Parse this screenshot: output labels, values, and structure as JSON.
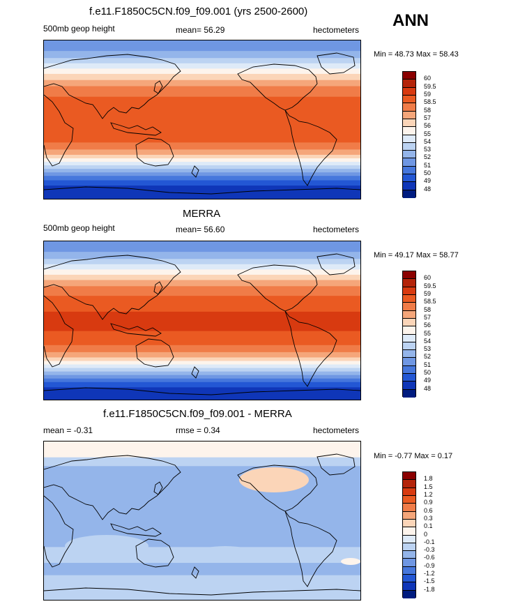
{
  "header": {
    "season": "ANN"
  },
  "chart_data": [
    {
      "type": "heatmap",
      "title": "f.e11.F1850C5CN.f09_f09.001 (yrs 2500-2600)",
      "left_label": "500mb geop height",
      "mean_label": "mean=  56.29",
      "units": "hectometers",
      "minmax_label": "Min =  48.73 Max =  58.43",
      "field": "500mb geopotential height",
      "mean": 56.29,
      "min": 48.73,
      "max": 58.43,
      "colorbar_levels": [
        "60",
        "59.5",
        "59",
        "58.5",
        "58",
        "57",
        "56",
        "55",
        "54",
        "53",
        "52",
        "51",
        "50",
        "49",
        "48"
      ],
      "colorbar_colors": [
        "#8b0000",
        "#b4240a",
        "#d83a10",
        "#ea5a22",
        "#f07c48",
        "#f5a67a",
        "#fbd5b8",
        "#fdf4ec",
        "#deeaf8",
        "#bcd3f2",
        "#94b5ea",
        "#6f97e3",
        "#4677dc",
        "#2357d4",
        "#0f36b8",
        "#001c80"
      ],
      "bands": [
        {
          "from": 90,
          "to": 78,
          "color": "#6f97e3"
        },
        {
          "from": 78,
          "to": 70,
          "color": "#94b5ea"
        },
        {
          "from": 70,
          "to": 64,
          "color": "#bcd3f2"
        },
        {
          "from": 64,
          "to": 58,
          "color": "#deeaf8"
        },
        {
          "from": 58,
          "to": 52,
          "color": "#fdf4ec"
        },
        {
          "from": 52,
          "to": 45,
          "color": "#fbd5b8"
        },
        {
          "from": 45,
          "to": 38,
          "color": "#f5a67a"
        },
        {
          "from": 38,
          "to": 26,
          "color": "#f07c48"
        },
        {
          "from": 26,
          "to": -26,
          "color": "#ea5a22"
        },
        {
          "from": -26,
          "to": -34,
          "color": "#f07c48"
        },
        {
          "from": -34,
          "to": -40,
          "color": "#f5a67a"
        },
        {
          "from": -40,
          "to": -44,
          "color": "#fbd5b8"
        },
        {
          "from": -44,
          "to": -48,
          "color": "#fdf4ec"
        },
        {
          "from": -48,
          "to": -52,
          "color": "#deeaf8"
        },
        {
          "from": -52,
          "to": -56,
          "color": "#bcd3f2"
        },
        {
          "from": -56,
          "to": -60,
          "color": "#94b5ea"
        },
        {
          "from": -60,
          "to": -64,
          "color": "#6f97e3"
        },
        {
          "from": -64,
          "to": -69,
          "color": "#4677dc"
        },
        {
          "from": -69,
          "to": -75,
          "color": "#2357d4"
        },
        {
          "from": -75,
          "to": -90,
          "color": "#0f36b8"
        }
      ]
    },
    {
      "type": "heatmap",
      "title": "MERRA",
      "left_label": "500mb geop height",
      "mean_label": "mean=  56.60",
      "units": "hectometers",
      "minmax_label": "Min =  49.17 Max =  58.77",
      "field": "500mb geopotential height",
      "mean": 56.6,
      "min": 49.17,
      "max": 58.77,
      "colorbar_levels": [
        "60",
        "59.5",
        "59",
        "58.5",
        "58",
        "57",
        "56",
        "55",
        "54",
        "53",
        "52",
        "51",
        "50",
        "49",
        "48"
      ],
      "colorbar_colors": [
        "#8b0000",
        "#b4240a",
        "#d83a10",
        "#ea5a22",
        "#f07c48",
        "#f5a67a",
        "#fbd5b8",
        "#fdf4ec",
        "#deeaf8",
        "#bcd3f2",
        "#94b5ea",
        "#6f97e3",
        "#4677dc",
        "#2357d4",
        "#0f36b8",
        "#001c80"
      ],
      "bands": [
        {
          "from": 90,
          "to": 78,
          "color": "#6f97e3"
        },
        {
          "from": 78,
          "to": 70,
          "color": "#94b5ea"
        },
        {
          "from": 70,
          "to": 64,
          "color": "#bcd3f2"
        },
        {
          "from": 64,
          "to": 58,
          "color": "#deeaf8"
        },
        {
          "from": 58,
          "to": 52,
          "color": "#fdf4ec"
        },
        {
          "from": 52,
          "to": 46,
          "color": "#fbd5b8"
        },
        {
          "from": 46,
          "to": 39,
          "color": "#f5a67a"
        },
        {
          "from": 39,
          "to": 28,
          "color": "#f07c48"
        },
        {
          "from": 28,
          "to": 10,
          "color": "#ea5a22"
        },
        {
          "from": 10,
          "to": -12,
          "color": "#d83a10"
        },
        {
          "from": -12,
          "to": -28,
          "color": "#ea5a22"
        },
        {
          "from": -28,
          "to": -36,
          "color": "#f07c48"
        },
        {
          "from": -36,
          "to": -42,
          "color": "#f5a67a"
        },
        {
          "from": -42,
          "to": -46,
          "color": "#fbd5b8"
        },
        {
          "from": -46,
          "to": -50,
          "color": "#fdf4ec"
        },
        {
          "from": -50,
          "to": -54,
          "color": "#deeaf8"
        },
        {
          "from": -54,
          "to": -58,
          "color": "#bcd3f2"
        },
        {
          "from": -58,
          "to": -62,
          "color": "#94b5ea"
        },
        {
          "from": -62,
          "to": -66,
          "color": "#6f97e3"
        },
        {
          "from": -66,
          "to": -70,
          "color": "#4677dc"
        },
        {
          "from": -70,
          "to": -76,
          "color": "#2357d4"
        },
        {
          "from": -76,
          "to": -90,
          "color": "#0f36b8"
        }
      ]
    },
    {
      "type": "heatmap",
      "title": "f.e11.F1850C5CN.f09_f09.001 - MERRA",
      "left_label": "mean =  -0.31",
      "mean_label": "rmse =  0.34",
      "units": "hectometers",
      "minmax_label": "Min =  -0.77 Max =  0.17",
      "field": "500mb geopotential height difference",
      "mean": -0.31,
      "rmse": 0.34,
      "min": -0.77,
      "max": 0.17,
      "colorbar_levels": [
        "1.8",
        "1.5",
        "1.2",
        "0.9",
        "0.6",
        "0.3",
        "0.1",
        "0",
        "-0.1",
        "-0.3",
        "-0.6",
        "-0.9",
        "-1.2",
        "-1.5",
        "-1.8"
      ],
      "colorbar_colors": [
        "#8b0000",
        "#b4240a",
        "#d83a10",
        "#ea5a22",
        "#f07c48",
        "#f5a67a",
        "#fbd5b8",
        "#fdf4ec",
        "#deeaf8",
        "#bcd3f2",
        "#94b5ea",
        "#6f97e3",
        "#4677dc",
        "#2357d4",
        "#0f36b8",
        "#001c80"
      ],
      "bands": [
        {
          "from": 90,
          "to": 72,
          "color": "#fdf4ec"
        },
        {
          "from": 72,
          "to": 62,
          "color": "#bcd3f2"
        },
        {
          "from": 62,
          "to": 30,
          "color": "#94b5ea"
        },
        {
          "from": 30,
          "to": -10,
          "color": "#94b5ea"
        },
        {
          "from": -10,
          "to": -30,
          "color": "#94b5ea"
        },
        {
          "from": -30,
          "to": -48,
          "color": "#bcd3f2"
        },
        {
          "from": -48,
          "to": -62,
          "color": "#94b5ea"
        },
        {
          "from": -62,
          "to": -90,
          "color": "#bcd3f2"
        }
      ]
    }
  ]
}
